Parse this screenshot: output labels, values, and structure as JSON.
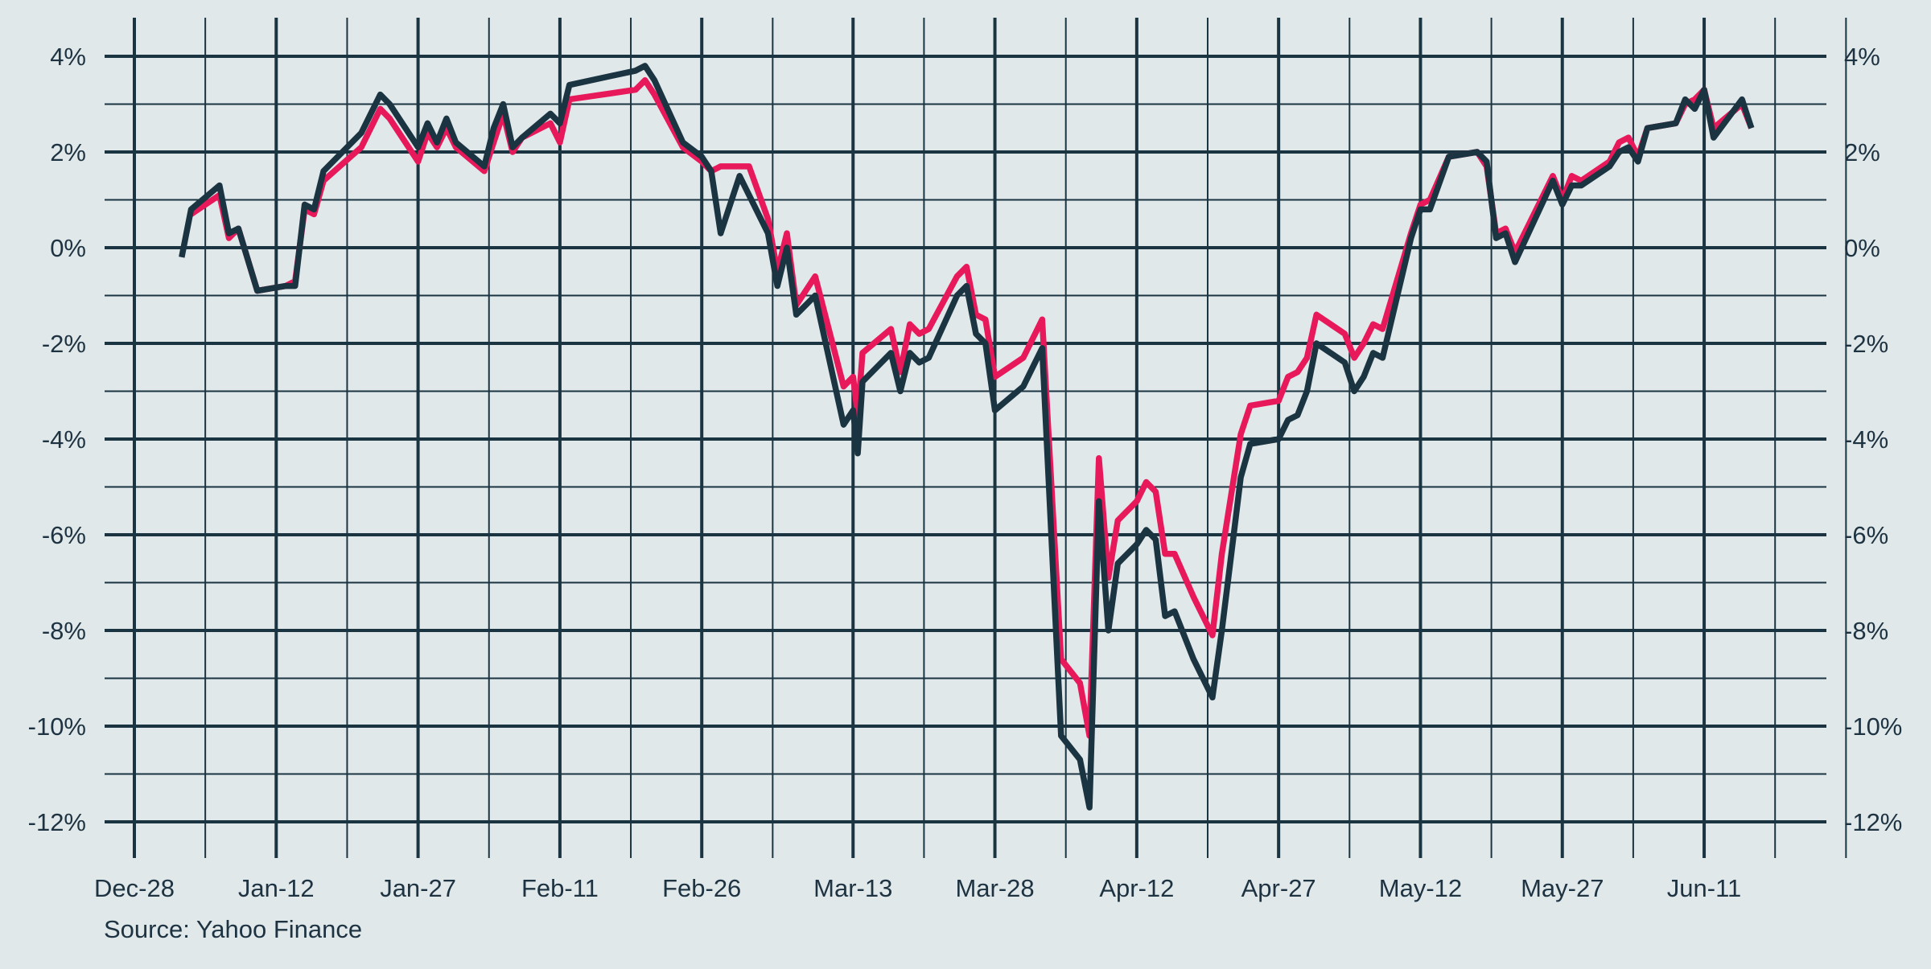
{
  "source": "Source: Yahoo Finance",
  "chart_data": {
    "type": "line",
    "title": "",
    "xlabel": "",
    "ylabel": "",
    "x_axis": {
      "type": "date",
      "range": [
        "2019-12-28",
        "2020-06-26"
      ],
      "ticks": [
        {
          "date": "2019-12-28",
          "label": "Dec-28"
        },
        {
          "date": "2020-01-12",
          "label": "Jan-12"
        },
        {
          "date": "2020-01-27",
          "label": "Jan-27"
        },
        {
          "date": "2020-02-11",
          "label": "Feb-11"
        },
        {
          "date": "2020-02-26",
          "label": "Feb-26"
        },
        {
          "date": "2020-03-13",
          "label": "Mar-13"
        },
        {
          "date": "2020-03-28",
          "label": "Mar-28"
        },
        {
          "date": "2020-04-12",
          "label": "Apr-12"
        },
        {
          "date": "2020-04-27",
          "label": "Apr-27"
        },
        {
          "date": "2020-05-12",
          "label": "May-12"
        },
        {
          "date": "2020-05-27",
          "label": "May-27"
        },
        {
          "date": "2020-06-11",
          "label": "Jun-11"
        }
      ]
    },
    "y_axis": {
      "unit": "%",
      "ylim": [
        -12,
        4
      ],
      "ticks": [
        {
          "value": 4,
          "label": "4%"
        },
        {
          "value": 2,
          "label": "2%"
        },
        {
          "value": 0,
          "label": "0%"
        },
        {
          "value": -2,
          "label": "-2%"
        },
        {
          "value": -4,
          "label": "-4%"
        },
        {
          "value": -6,
          "label": "-6%"
        },
        {
          "value": -8,
          "label": "-8%"
        },
        {
          "value": -10,
          "label": "-10%"
        },
        {
          "value": -12,
          "label": "-12%"
        }
      ],
      "labels_both_sides": true
    },
    "grid": true,
    "series": [
      {
        "color": "#e8195a",
        "points": [
          [
            "2020-01-03",
            0.7
          ],
          [
            "2020-01-06",
            1.1
          ],
          [
            "2020-01-07",
            0.2
          ],
          [
            "2020-01-08",
            0.4
          ],
          [
            "2020-01-10",
            -0.9
          ],
          [
            "2020-01-13",
            -0.8
          ],
          [
            "2020-01-14",
            -0.7
          ],
          [
            "2020-01-15",
            0.8
          ],
          [
            "2020-01-16",
            0.7
          ],
          [
            "2020-01-17",
            1.4
          ],
          [
            "2020-01-21",
            2.1
          ],
          [
            "2020-01-23",
            2.9
          ],
          [
            "2020-01-24",
            2.7
          ],
          [
            "2020-01-27",
            1.8
          ],
          [
            "2020-01-28",
            2.4
          ],
          [
            "2020-01-29",
            2.1
          ],
          [
            "2020-01-30",
            2.5
          ],
          [
            "2020-01-31",
            2.1
          ],
          [
            "2020-02-03",
            1.6
          ],
          [
            "2020-02-04",
            2.2
          ],
          [
            "2020-02-05",
            2.8
          ],
          [
            "2020-02-06",
            2.0
          ],
          [
            "2020-02-07",
            2.3
          ],
          [
            "2020-02-10",
            2.6
          ],
          [
            "2020-02-11",
            2.2
          ],
          [
            "2020-02-12",
            3.1
          ],
          [
            "2020-02-19",
            3.3
          ],
          [
            "2020-02-20",
            3.5
          ],
          [
            "2020-02-21",
            3.2
          ],
          [
            "2020-02-24",
            2.1
          ],
          [
            "2020-02-26",
            1.8
          ],
          [
            "2020-02-27",
            1.6
          ],
          [
            "2020-02-28",
            1.7
          ],
          [
            "2020-03-02",
            1.7
          ],
          [
            "2020-03-04",
            0.6
          ],
          [
            "2020-03-05",
            -0.5
          ],
          [
            "2020-03-06",
            0.3
          ],
          [
            "2020-03-07",
            -1.2
          ],
          [
            "2020-03-09",
            -0.6
          ],
          [
            "2020-03-12",
            -2.9
          ],
          [
            "2020-03-13",
            -2.7
          ],
          [
            "2020-03-13.5",
            -3.5
          ],
          [
            "2020-03-14",
            -2.2
          ],
          [
            "2020-03-17",
            -1.7
          ],
          [
            "2020-03-18",
            -2.6
          ],
          [
            "2020-03-19",
            -1.6
          ],
          [
            "2020-03-20",
            -1.8
          ],
          [
            "2020-03-21",
            -1.7
          ],
          [
            "2020-03-24",
            -0.6
          ],
          [
            "2020-03-25",
            -0.4
          ],
          [
            "2020-03-26",
            -1.4
          ],
          [
            "2020-03-27",
            -1.5
          ],
          [
            "2020-03-28",
            -2.7
          ],
          [
            "2020-03-31",
            -2.3
          ],
          [
            "2020-04-02",
            -1.5
          ],
          [
            "2020-04-04",
            -8.6
          ],
          [
            "2020-04-06",
            -9.1
          ],
          [
            "2020-04-07",
            -10.2
          ],
          [
            "2020-04-08",
            -4.4
          ],
          [
            "2020-04-09",
            -6.9
          ],
          [
            "2020-04-10",
            -5.7
          ],
          [
            "2020-04-12",
            -5.3
          ],
          [
            "2020-04-13",
            -4.9
          ],
          [
            "2020-04-14",
            -5.1
          ],
          [
            "2020-04-15",
            -6.4
          ],
          [
            "2020-04-16",
            -6.4
          ],
          [
            "2020-04-18",
            -7.3
          ],
          [
            "2020-04-20",
            -8.1
          ],
          [
            "2020-04-21",
            -6.4
          ],
          [
            "2020-04-23",
            -3.9
          ],
          [
            "2020-04-24",
            -3.3
          ],
          [
            "2020-04-27",
            -3.2
          ],
          [
            "2020-04-28",
            -2.7
          ],
          [
            "2020-04-29",
            -2.6
          ],
          [
            "2020-04-30",
            -2.3
          ],
          [
            "2020-05-01",
            -1.4
          ],
          [
            "2020-05-04",
            -1.8
          ],
          [
            "2020-05-05",
            -2.3
          ],
          [
            "2020-05-06",
            -2.0
          ],
          [
            "2020-05-07",
            -1.6
          ],
          [
            "2020-05-08",
            -1.7
          ],
          [
            "2020-05-11",
            0.3
          ],
          [
            "2020-05-12",
            0.9
          ],
          [
            "2020-05-13",
            1.0
          ],
          [
            "2020-05-15",
            1.9
          ],
          [
            "2020-05-18",
            2.0
          ],
          [
            "2020-05-19",
            1.7
          ],
          [
            "2020-05-20",
            0.3
          ],
          [
            "2020-05-21",
            0.4
          ],
          [
            "2020-05-22",
            -0.1
          ],
          [
            "2020-05-26",
            1.5
          ],
          [
            "2020-05-27",
            1.0
          ],
          [
            "2020-05-28",
            1.5
          ],
          [
            "2020-05-29",
            1.4
          ],
          [
            "2020-06-01",
            1.8
          ],
          [
            "2020-06-02",
            2.2
          ],
          [
            "2020-06-03",
            2.3
          ],
          [
            "2020-06-04",
            1.9
          ],
          [
            "2020-06-05",
            2.5
          ],
          [
            "2020-06-08",
            2.6
          ],
          [
            "2020-06-09",
            3.0
          ],
          [
            "2020-06-10",
            3.1
          ],
          [
            "2020-06-11",
            3.3
          ],
          [
            "2020-06-12",
            2.5
          ],
          [
            "2020-06-15",
            3.0
          ],
          [
            "2020-06-16",
            2.5
          ]
        ]
      },
      {
        "color": "#1b3442",
        "points": [
          [
            "2020-01-02",
            -0.2
          ],
          [
            "2020-01-03",
            0.8
          ],
          [
            "2020-01-06",
            1.3
          ],
          [
            "2020-01-07",
            0.3
          ],
          [
            "2020-01-08",
            0.4
          ],
          [
            "2020-01-10",
            -0.9
          ],
          [
            "2020-01-13",
            -0.8
          ],
          [
            "2020-01-14",
            -0.8
          ],
          [
            "2020-01-15",
            0.9
          ],
          [
            "2020-01-16",
            0.8
          ],
          [
            "2020-01-17",
            1.6
          ],
          [
            "2020-01-21",
            2.4
          ],
          [
            "2020-01-23",
            3.2
          ],
          [
            "2020-01-24",
            3.0
          ],
          [
            "2020-01-27",
            2.1
          ],
          [
            "2020-01-28",
            2.6
          ],
          [
            "2020-01-29",
            2.2
          ],
          [
            "2020-01-30",
            2.7
          ],
          [
            "2020-01-31",
            2.2
          ],
          [
            "2020-02-03",
            1.7
          ],
          [
            "2020-02-04",
            2.5
          ],
          [
            "2020-02-05",
            3.0
          ],
          [
            "2020-02-06",
            2.1
          ],
          [
            "2020-02-07",
            2.3
          ],
          [
            "2020-02-10",
            2.8
          ],
          [
            "2020-02-11",
            2.6
          ],
          [
            "2020-02-12",
            3.4
          ],
          [
            "2020-02-19",
            3.7
          ],
          [
            "2020-02-20",
            3.8
          ],
          [
            "2020-02-21",
            3.5
          ],
          [
            "2020-02-24",
            2.2
          ],
          [
            "2020-02-26",
            1.9
          ],
          [
            "2020-02-27",
            1.6
          ],
          [
            "2020-02-28",
            0.3
          ],
          [
            "2020-03-01",
            1.5
          ],
          [
            "2020-03-04",
            0.3
          ],
          [
            "2020-03-05",
            -0.8
          ],
          [
            "2020-03-06",
            0.0
          ],
          [
            "2020-03-07",
            -1.4
          ],
          [
            "2020-03-09",
            -1.0
          ],
          [
            "2020-03-12",
            -3.7
          ],
          [
            "2020-03-13",
            -3.4
          ],
          [
            "2020-03-13.5",
            -4.3
          ],
          [
            "2020-03-14",
            -2.8
          ],
          [
            "2020-03-17",
            -2.2
          ],
          [
            "2020-03-18",
            -3.0
          ],
          [
            "2020-03-19",
            -2.2
          ],
          [
            "2020-03-20",
            -2.4
          ],
          [
            "2020-03-21",
            -2.3
          ],
          [
            "2020-03-24",
            -1.0
          ],
          [
            "2020-03-25",
            -0.8
          ],
          [
            "2020-03-26",
            -1.8
          ],
          [
            "2020-03-27",
            -2.0
          ],
          [
            "2020-03-28",
            -3.4
          ],
          [
            "2020-03-31",
            -2.9
          ],
          [
            "2020-04-02",
            -2.1
          ],
          [
            "2020-04-04",
            -10.2
          ],
          [
            "2020-04-06",
            -10.7
          ],
          [
            "2020-04-07",
            -11.7
          ],
          [
            "2020-04-08",
            -5.3
          ],
          [
            "2020-04-09",
            -8.0
          ],
          [
            "2020-04-10",
            -6.6
          ],
          [
            "2020-04-12",
            -6.2
          ],
          [
            "2020-04-13",
            -5.9
          ],
          [
            "2020-04-14",
            -6.1
          ],
          [
            "2020-04-15",
            -7.7
          ],
          [
            "2020-04-16",
            -7.6
          ],
          [
            "2020-04-18",
            -8.6
          ],
          [
            "2020-04-20",
            -9.4
          ],
          [
            "2020-04-21",
            -8.0
          ],
          [
            "2020-04-22",
            -6.4
          ],
          [
            "2020-04-23",
            -4.8
          ],
          [
            "2020-04-24",
            -4.1
          ],
          [
            "2020-04-27",
            -4.0
          ],
          [
            "2020-04-28",
            -3.6
          ],
          [
            "2020-04-29",
            -3.5
          ],
          [
            "2020-04-30",
            -3.0
          ],
          [
            "2020-05-01",
            -2.0
          ],
          [
            "2020-05-04",
            -2.4
          ],
          [
            "2020-05-05",
            -3.0
          ],
          [
            "2020-05-06",
            -2.7
          ],
          [
            "2020-05-07",
            -2.2
          ],
          [
            "2020-05-08",
            -2.3
          ],
          [
            "2020-05-11",
            0.2
          ],
          [
            "2020-05-12",
            0.8
          ],
          [
            "2020-05-13",
            0.8
          ],
          [
            "2020-05-15",
            1.9
          ],
          [
            "2020-05-18",
            2.0
          ],
          [
            "2020-05-19",
            1.8
          ],
          [
            "2020-05-20",
            0.2
          ],
          [
            "2020-05-21",
            0.3
          ],
          [
            "2020-05-22",
            -0.3
          ],
          [
            "2020-05-26",
            1.4
          ],
          [
            "2020-05-27",
            0.9
          ],
          [
            "2020-05-28",
            1.3
          ],
          [
            "2020-05-29",
            1.3
          ],
          [
            "2020-06-01",
            1.7
          ],
          [
            "2020-06-02",
            2.0
          ],
          [
            "2020-06-03",
            2.1
          ],
          [
            "2020-06-04",
            1.8
          ],
          [
            "2020-06-05",
            2.5
          ],
          [
            "2020-06-08",
            2.6
          ],
          [
            "2020-06-09",
            3.1
          ],
          [
            "2020-06-10",
            2.9
          ],
          [
            "2020-06-11",
            3.3
          ],
          [
            "2020-06-12",
            2.3
          ],
          [
            "2020-06-15",
            3.1
          ],
          [
            "2020-06-16",
            2.5
          ]
        ]
      }
    ]
  }
}
